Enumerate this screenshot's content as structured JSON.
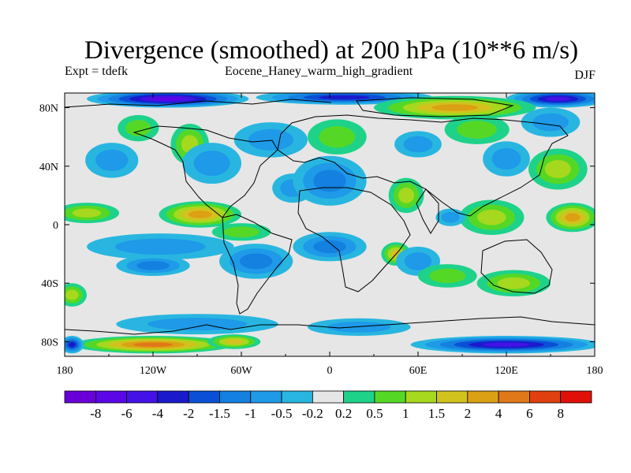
{
  "title": "Divergence (smoothed) at 200 hPa (10**6 m/s)",
  "subtitle_left": "Expt = tdefk",
  "subtitle_center": "Eocene_Haney_warm_high_gradient",
  "subtitle_right": "DJF",
  "colors": {
    "neutral": "#e6e6e6",
    "levels": [
      "#6a00d8",
      "#5a06e6",
      "#4412e6",
      "#1a1acc",
      "#0a50d6",
      "#1480e0",
      "#1e9ae8",
      "#28b6e0",
      "#e6e6e6",
      "#1ed28a",
      "#55d825",
      "#a6d81e",
      "#d2c21e",
      "#dca014",
      "#e0781a",
      "#e04010",
      "#e01008"
    ]
  },
  "chart_data": {
    "type": "contour-map",
    "projection": "cylindrical-equidistant",
    "x_range": [
      -180,
      180
    ],
    "y_range": [
      -90,
      90
    ],
    "x_ticks": [
      {
        "value": -180,
        "label": "180"
      },
      {
        "value": -120,
        "label": "120W"
      },
      {
        "value": -60,
        "label": "60W"
      },
      {
        "value": 0,
        "label": "0"
      },
      {
        "value": 60,
        "label": "60E"
      },
      {
        "value": 120,
        "label": "120E"
      },
      {
        "value": 180,
        "label": "180"
      }
    ],
    "y_ticks": [
      {
        "value": 80,
        "label": "80N"
      },
      {
        "value": 40,
        "label": "40N"
      },
      {
        "value": 0,
        "label": "0"
      },
      {
        "value": -40,
        "label": "40S"
      },
      {
        "value": -80,
        "label": "80S"
      }
    ],
    "colorbar_levels": [
      "-8",
      "-6",
      "-4",
      "-2",
      "-1.5",
      "-1",
      "-0.5",
      "-0.2",
      "0.2",
      "0.5",
      "1",
      "1.5",
      "2",
      "4",
      "6",
      "8"
    ],
    "blobs": [
      {
        "lon": -110,
        "lat": 86,
        "rlon": 55,
        "rlat": 6,
        "v": -6
      },
      {
        "lon": 10,
        "lat": 87,
        "rlon": 60,
        "rlat": 5,
        "v": -3
      },
      {
        "lon": 155,
        "lat": 86,
        "rlon": 35,
        "rlat": 6,
        "v": -4
      },
      {
        "lon": 85,
        "lat": 80,
        "rlon": 55,
        "rlat": 8,
        "v": 3
      },
      {
        "lon": -130,
        "lat": 66,
        "rlon": 14,
        "rlat": 9,
        "v": 0.8
      },
      {
        "lon": -95,
        "lat": 55,
        "rlon": 13,
        "rlat": 14,
        "v": 1.2
      },
      {
        "lon": -148,
        "lat": 44,
        "rlon": 18,
        "rlat": 12,
        "v": -0.8
      },
      {
        "lon": -80,
        "lat": 42,
        "rlon": 20,
        "rlat": 14,
        "v": -0.8
      },
      {
        "lon": -40,
        "lat": 58,
        "rlon": 25,
        "rlat": 12,
        "v": -0.9
      },
      {
        "lon": -25,
        "lat": 25,
        "rlon": 14,
        "rlat": 10,
        "v": -0.6
      },
      {
        "lon": 5,
        "lat": 60,
        "rlon": 20,
        "rlat": 12,
        "v": 0.8
      },
      {
        "lon": 0,
        "lat": 30,
        "rlon": 25,
        "rlat": 17,
        "v": -1.3
      },
      {
        "lon": 60,
        "lat": 55,
        "rlon": 16,
        "rlat": 9,
        "v": -0.6
      },
      {
        "lon": 52,
        "lat": 20,
        "rlon": 12,
        "rlat": 12,
        "v": 1.4
      },
      {
        "lon": 100,
        "lat": 65,
        "rlon": 22,
        "rlat": 10,
        "v": 0.8
      },
      {
        "lon": 150,
        "lat": 70,
        "rlon": 20,
        "rlat": 10,
        "v": -0.7
      },
      {
        "lon": 155,
        "lat": 38,
        "rlon": 20,
        "rlat": 14,
        "v": 1.1
      },
      {
        "lon": 120,
        "lat": 45,
        "rlon": 16,
        "rlat": 12,
        "v": -0.5
      },
      {
        "lon": -165,
        "lat": 8,
        "rlon": 22,
        "rlat": 7,
        "v": 1.0
      },
      {
        "lon": -88,
        "lat": 7,
        "rlon": 28,
        "rlat": 9,
        "v": 2.0
      },
      {
        "lon": -60,
        "lat": -5,
        "rlon": 20,
        "rlat": 6,
        "v": 0.8
      },
      {
        "lon": 110,
        "lat": 5,
        "rlon": 22,
        "rlat": 12,
        "v": 1.3
      },
      {
        "lon": 165,
        "lat": 5,
        "rlon": 18,
        "rlat": 10,
        "v": 2.2
      },
      {
        "lon": 82,
        "lat": 5,
        "rlon": 10,
        "rlat": 6,
        "v": -0.7
      },
      {
        "lon": -115,
        "lat": -15,
        "rlon": 50,
        "rlat": 9,
        "v": -0.9
      },
      {
        "lon": -120,
        "lat": -28,
        "rlon": 25,
        "rlat": 7,
        "v": -1.0
      },
      {
        "lon": -50,
        "lat": -25,
        "rlon": 25,
        "rlat": 12,
        "v": -1.2
      },
      {
        "lon": 0,
        "lat": -15,
        "rlon": 25,
        "rlat": 10,
        "v": -1.2
      },
      {
        "lon": 45,
        "lat": -20,
        "rlon": 10,
        "rlat": 8,
        "v": 1.6
      },
      {
        "lon": 60,
        "lat": -25,
        "rlon": 15,
        "rlat": 10,
        "v": -0.8
      },
      {
        "lon": 80,
        "lat": -35,
        "rlon": 20,
        "rlat": 8,
        "v": 0.9
      },
      {
        "lon": 125,
        "lat": -40,
        "rlon": 25,
        "rlat": 9,
        "v": 1.2
      },
      {
        "lon": -175,
        "lat": -48,
        "rlon": 10,
        "rlat": 8,
        "v": 1.4
      },
      {
        "lon": -90,
        "lat": -68,
        "rlon": 55,
        "rlat": 7,
        "v": -0.8
      },
      {
        "lon": -120,
        "lat": -82,
        "rlon": 55,
        "rlat": 6,
        "v": 4.5
      },
      {
        "lon": -65,
        "lat": -80,
        "rlon": 18,
        "rlat": 5,
        "v": 1.5
      },
      {
        "lon": 20,
        "lat": -70,
        "rlon": 35,
        "rlat": 6,
        "v": -0.5
      },
      {
        "lon": 120,
        "lat": -82,
        "rlon": 65,
        "rlat": 6,
        "v": -4.0
      },
      {
        "lon": -175,
        "lat": -82,
        "rlon": 8,
        "rlat": 6,
        "v": -2.0
      }
    ]
  }
}
